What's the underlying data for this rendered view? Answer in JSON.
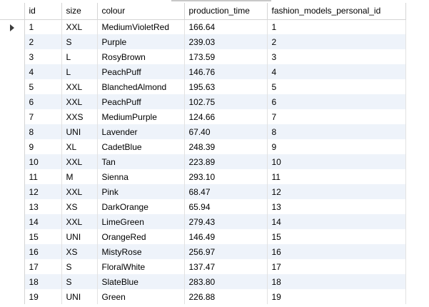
{
  "grid": {
    "columns": [
      "id",
      "size",
      "colour",
      "production_time",
      "fashion_models_personal_id"
    ],
    "current_row_marker": "row-pointer-icon",
    "rows": [
      [
        "1",
        "XXL",
        "MediumVioletRed",
        "166.64",
        "1"
      ],
      [
        "2",
        "S",
        "Purple",
        "239.03",
        "2"
      ],
      [
        "3",
        "L",
        "RosyBrown",
        "173.59",
        "3"
      ],
      [
        "4",
        "L",
        "PeachPuff",
        "146.76",
        "4"
      ],
      [
        "5",
        "XXL",
        "BlanchedAlmond",
        "195.63",
        "5"
      ],
      [
        "6",
        "XXL",
        "PeachPuff",
        "102.75",
        "6"
      ],
      [
        "7",
        "XXS",
        "MediumPurple",
        "124.66",
        "7"
      ],
      [
        "8",
        "UNI",
        "Lavender",
        "67.40",
        "8"
      ],
      [
        "9",
        "XL",
        "CadetBlue",
        "248.39",
        "9"
      ],
      [
        "10",
        "XXL",
        "Tan",
        "223.89",
        "10"
      ],
      [
        "11",
        "M",
        "Sienna",
        "293.10",
        "11"
      ],
      [
        "12",
        "XXL",
        "Pink",
        "68.47",
        "12"
      ],
      [
        "13",
        "XS",
        "DarkOrange",
        "65.94",
        "13"
      ],
      [
        "14",
        "XXL",
        "LimeGreen",
        "279.43",
        "14"
      ],
      [
        "15",
        "UNI",
        "OrangeRed",
        "146.49",
        "15"
      ],
      [
        "16",
        "XS",
        "MistyRose",
        "256.97",
        "16"
      ],
      [
        "17",
        "S",
        "FloralWhite",
        "137.47",
        "17"
      ],
      [
        "18",
        "S",
        "SlateBlue",
        "283.80",
        "18"
      ],
      [
        "19",
        "UNI",
        "Green",
        "226.88",
        "19"
      ]
    ]
  },
  "colors": {
    "alt_row": "#eef3fa",
    "grid_line": "#e2e2e2",
    "header_border": "#d5d5d5"
  }
}
